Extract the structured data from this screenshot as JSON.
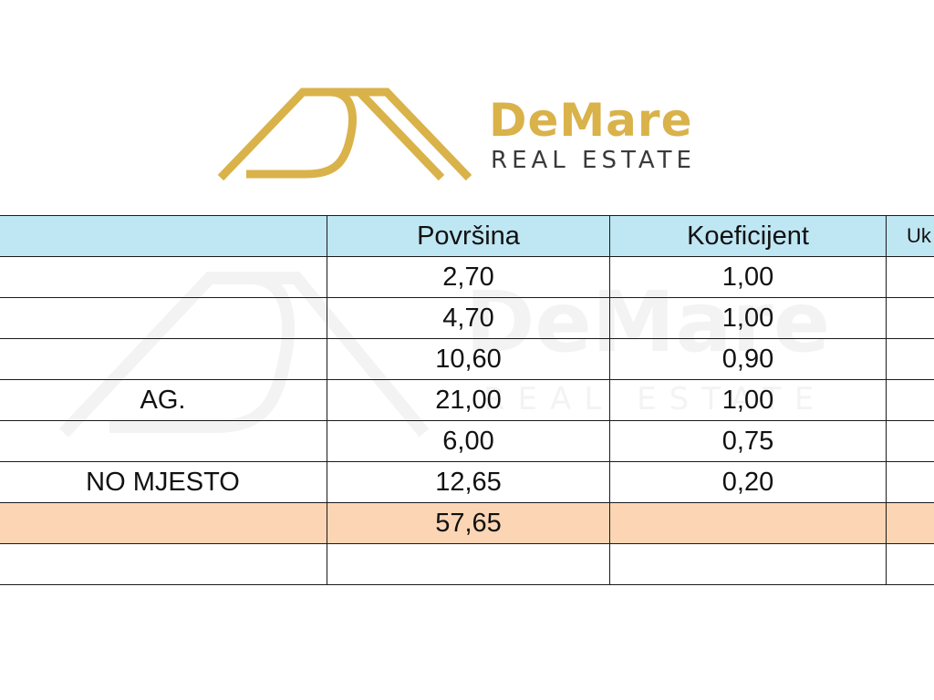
{
  "brand": {
    "name": "DeMare",
    "tagline": "REAL ESTATE",
    "accent_color": "#d9b24a",
    "icon": "mountain-roof-logo-icon"
  },
  "table": {
    "headers": {
      "name": "",
      "area": "Površina",
      "coefficient": "Koeficijent",
      "total": "Uk"
    },
    "header_color": "#bfe6f3",
    "total_color": "#fcd5b4",
    "rows": [
      {
        "name": "",
        "area": "2,70",
        "coefficient": "1,00",
        "total": ""
      },
      {
        "name": "",
        "area": "4,70",
        "coefficient": "1,00",
        "total": ""
      },
      {
        "name": "",
        "area": "10,60",
        "coefficient": "0,90",
        "total": ""
      },
      {
        "name": "AG.",
        "area": "21,00",
        "coefficient": "1,00",
        "total": ""
      },
      {
        "name": "",
        "area": "6,00",
        "coefficient": "0,75",
        "total": ""
      },
      {
        "name": "NO MJESTO",
        "area": "12,65",
        "coefficient": "0,20",
        "total": ""
      }
    ],
    "sum": {
      "name": "",
      "area": "57,65",
      "coefficient": "",
      "total": ""
    }
  }
}
